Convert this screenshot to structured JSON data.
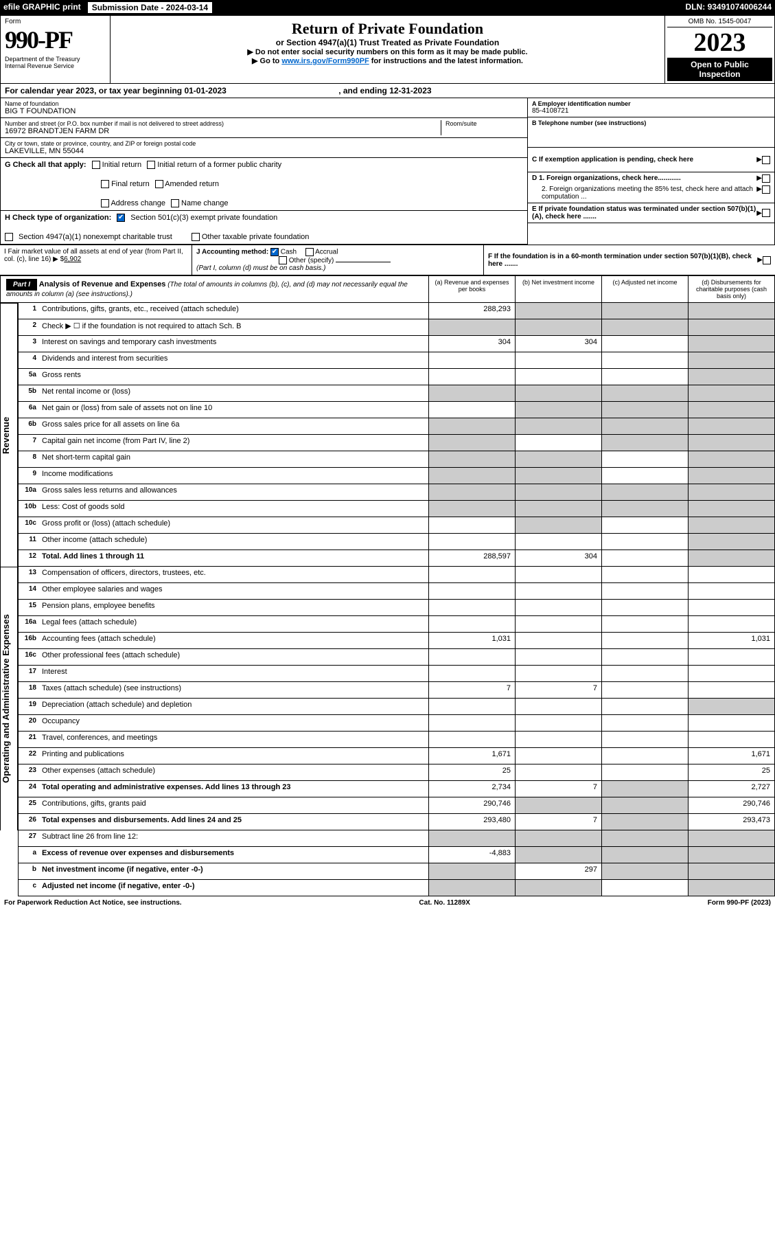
{
  "top": {
    "efile": "efile GRAPHIC print",
    "subdate_label": "Submission Date -",
    "subdate": "2024-03-14",
    "dln_label": "DLN:",
    "dln": "93491074006244"
  },
  "form": {
    "label": "Form",
    "num": "990-PF",
    "dept": "Department of the Treasury\nInternal Revenue Service"
  },
  "title": {
    "main": "Return of Private Foundation",
    "sub1": "or Section 4947(a)(1) Trust Treated as Private Foundation",
    "sub2": "▶ Do not enter social security numbers on this form as it may be made public.",
    "sub3a": "▶ Go to ",
    "sub3b": "www.irs.gov/Form990PF",
    "sub3c": " for instructions and the latest information."
  },
  "yearbox": {
    "omb": "OMB No. 1545-0047",
    "year": "2023",
    "open": "Open to Public Inspection"
  },
  "cal": {
    "prefix": "For calendar year 2023, or tax year beginning ",
    "begin": "01-01-2023",
    "mid": ", and ending ",
    "end": "12-31-2023"
  },
  "name": {
    "label": "Name of foundation",
    "value": "BIG T FOUNDATION"
  },
  "ein": {
    "label": "A Employer identification number",
    "value": "85-4108721"
  },
  "street": {
    "label": "Number and street (or P.O. box number if mail is not delivered to street address)",
    "value": "16972 BRANDTJEN FARM DR",
    "room": "Room/suite"
  },
  "phone": {
    "label": "B Telephone number (see instructions)",
    "value": ""
  },
  "city": {
    "label": "City or town, state or province, country, and ZIP or foreign postal code",
    "value": "LAKEVILLE, MN  55044"
  },
  "c": "C If exemption application is pending, check here",
  "g": {
    "label": "G Check all that apply:",
    "opts": [
      "Initial return",
      "Final return",
      "Address change",
      "Initial return of a former public charity",
      "Amended return",
      "Name change"
    ]
  },
  "d": {
    "d1": "D 1. Foreign organizations, check here............",
    "d2": "2. Foreign organizations meeting the 85% test, check here and attach computation ..."
  },
  "h": {
    "label": "H Check type of organization:",
    "o1": "Section 501(c)(3) exempt private foundation",
    "o2": "Section 4947(a)(1) nonexempt charitable trust",
    "o3": "Other taxable private foundation"
  },
  "e": "E If private foundation status was terminated under section 507(b)(1)(A), check here .......",
  "i": {
    "label": "I Fair market value of all assets at end of year (from Part II, col. (c), line 16) ▶ $",
    "value": "6,902"
  },
  "j": {
    "label": "J Accounting method:",
    "cash": "Cash",
    "accrual": "Accrual",
    "other": "Other (specify)",
    "note": "(Part I, column (d) must be on cash basis.)"
  },
  "f": "F If the foundation is in a 60-month termination under section 507(b)(1)(B), check here .......",
  "part1": {
    "header": "Part I",
    "title": "Analysis of Revenue and Expenses",
    "note": "(The total of amounts in columns (b), (c), and (d) may not necessarily equal the amounts in column (a) (see instructions).)",
    "cols": [
      "(a) Revenue and expenses per books",
      "(b) Net investment income",
      "(c) Adjusted net income",
      "(d) Disbursements for charitable purposes (cash basis only)"
    ]
  },
  "sides": {
    "rev": "Revenue",
    "exp": "Operating and Administrative Expenses"
  },
  "lines": {
    "1": {
      "label": "Contributions, gifts, grants, etc., received (attach schedule)",
      "a": "288,293"
    },
    "2": {
      "label": "Check ▶ ☐ if the foundation is not required to attach Sch. B"
    },
    "3": {
      "label": "Interest on savings and temporary cash investments",
      "a": "304",
      "b": "304"
    },
    "4": {
      "label": "Dividends and interest from securities"
    },
    "5a": {
      "label": "Gross rents"
    },
    "5b": {
      "label": "Net rental income or (loss)"
    },
    "6a": {
      "label": "Net gain or (loss) from sale of assets not on line 10"
    },
    "6b": {
      "label": "Gross sales price for all assets on line 6a"
    },
    "7": {
      "label": "Capital gain net income (from Part IV, line 2)"
    },
    "8": {
      "label": "Net short-term capital gain"
    },
    "9": {
      "label": "Income modifications"
    },
    "10a": {
      "label": "Gross sales less returns and allowances"
    },
    "10b": {
      "label": "Less: Cost of goods sold"
    },
    "10c": {
      "label": "Gross profit or (loss) (attach schedule)"
    },
    "11": {
      "label": "Other income (attach schedule)"
    },
    "12": {
      "label": "Total. Add lines 1 through 11",
      "a": "288,597",
      "b": "304"
    },
    "13": {
      "label": "Compensation of officers, directors, trustees, etc."
    },
    "14": {
      "label": "Other employee salaries and wages"
    },
    "15": {
      "label": "Pension plans, employee benefits"
    },
    "16a": {
      "label": "Legal fees (attach schedule)"
    },
    "16b": {
      "label": "Accounting fees (attach schedule)",
      "a": "1,031",
      "d": "1,031"
    },
    "16c": {
      "label": "Other professional fees (attach schedule)"
    },
    "17": {
      "label": "Interest"
    },
    "18": {
      "label": "Taxes (attach schedule) (see instructions)",
      "a": "7",
      "b": "7"
    },
    "19": {
      "label": "Depreciation (attach schedule) and depletion"
    },
    "20": {
      "label": "Occupancy"
    },
    "21": {
      "label": "Travel, conferences, and meetings"
    },
    "22": {
      "label": "Printing and publications",
      "a": "1,671",
      "d": "1,671"
    },
    "23": {
      "label": "Other expenses (attach schedule)",
      "a": "25",
      "d": "25"
    },
    "24": {
      "label": "Total operating and administrative expenses. Add lines 13 through 23",
      "a": "2,734",
      "b": "7",
      "d": "2,727"
    },
    "25": {
      "label": "Contributions, gifts, grants paid",
      "a": "290,746",
      "d": "290,746"
    },
    "26": {
      "label": "Total expenses and disbursements. Add lines 24 and 25",
      "a": "293,480",
      "b": "7",
      "d": "293,473"
    },
    "27": {
      "label": "Subtract line 26 from line 12:"
    },
    "27a": {
      "label": "Excess of revenue over expenses and disbursements",
      "a": "-4,883"
    },
    "27b": {
      "label": "Net investment income (if negative, enter -0-)",
      "b": "297"
    },
    "27c": {
      "label": "Adjusted net income (if negative, enter -0-)"
    }
  },
  "footer": {
    "left": "For Paperwork Reduction Act Notice, see instructions.",
    "mid": "Cat. No. 11289X",
    "right": "Form 990-PF (2023)"
  }
}
